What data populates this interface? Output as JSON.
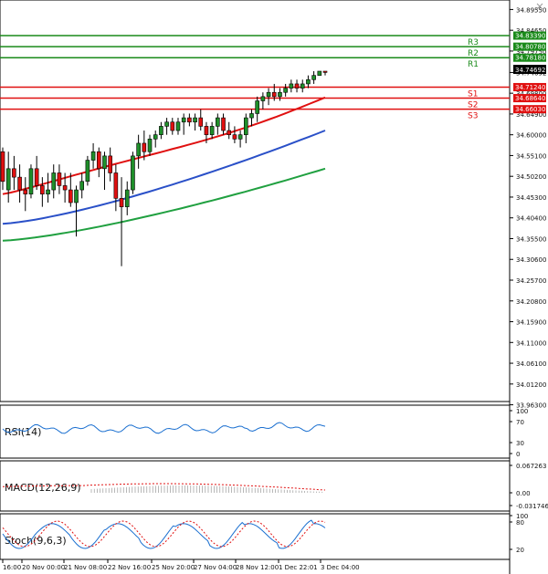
{
  "chart_data": {
    "type": "candlestick",
    "price_axis": {
      "ticks": [
        "34.89550",
        "34.84650",
        "34.79750",
        "34.74692",
        "34.69800",
        "34.64900",
        "34.60000",
        "34.55100",
        "34.50200",
        "34.45300",
        "34.40400",
        "34.35500",
        "34.30600",
        "34.25700",
        "34.20800",
        "34.15900",
        "34.11000",
        "34.06100",
        "34.01200",
        "33.96300"
      ],
      "ylim": [
        33.975,
        34.905
      ]
    },
    "levels": [
      {
        "name": "R3",
        "value": "34.83390",
        "num": 34.8339,
        "color": "#1a8a1a"
      },
      {
        "name": "R2",
        "value": "34.80780",
        "num": 34.8078,
        "color": "#1a8a1a"
      },
      {
        "name": "R1",
        "value": "34.78180",
        "num": 34.7818,
        "color": "#1a8a1a"
      },
      {
        "name": "S1",
        "value": "34.71240",
        "num": 34.7124,
        "color": "#e01010"
      },
      {
        "name": "S2",
        "value": "34.68640",
        "num": 34.6864,
        "color": "#e01010"
      },
      {
        "name": "S3",
        "value": "34.66030",
        "num": 34.6603,
        "color": "#e01010"
      }
    ],
    "current_price": {
      "value": "34.74692",
      "num": 34.74692
    },
    "time_labels": [
      "16:00",
      "20 Nov 00:00",
      "21 Nov 08:00",
      "22 Nov 16:00",
      "25 Nov 20:00",
      "27 Nov 04:00",
      "28 Nov 12:00",
      "1 Dec 22:01",
      "3 Dec 04:00"
    ],
    "candles": [
      {
        "o": 34.56,
        "h": 34.57,
        "l": 34.47,
        "c": 34.49
      },
      {
        "o": 34.47,
        "h": 34.56,
        "l": 34.44,
        "c": 34.52
      },
      {
        "o": 34.52,
        "h": 34.55,
        "l": 34.47,
        "c": 34.5
      },
      {
        "o": 34.5,
        "h": 34.53,
        "l": 34.44,
        "c": 34.47
      },
      {
        "o": 34.47,
        "h": 34.5,
        "l": 34.42,
        "c": 34.46
      },
      {
        "o": 34.46,
        "h": 34.53,
        "l": 34.45,
        "c": 34.52
      },
      {
        "o": 34.52,
        "h": 34.55,
        "l": 34.47,
        "c": 34.48
      },
      {
        "o": 34.48,
        "h": 34.5,
        "l": 34.43,
        "c": 34.46
      },
      {
        "o": 34.46,
        "h": 34.51,
        "l": 34.44,
        "c": 34.47
      },
      {
        "o": 34.47,
        "h": 34.53,
        "l": 34.45,
        "c": 34.51
      },
      {
        "o": 34.51,
        "h": 34.53,
        "l": 34.46,
        "c": 34.48
      },
      {
        "o": 34.48,
        "h": 34.51,
        "l": 34.44,
        "c": 34.47
      },
      {
        "o": 34.47,
        "h": 34.51,
        "l": 34.43,
        "c": 34.44
      },
      {
        "o": 34.44,
        "h": 34.48,
        "l": 34.36,
        "c": 34.47
      },
      {
        "o": 34.47,
        "h": 34.51,
        "l": 34.45,
        "c": 34.49
      },
      {
        "o": 34.49,
        "h": 34.55,
        "l": 34.48,
        "c": 34.54
      },
      {
        "o": 34.54,
        "h": 34.58,
        "l": 34.52,
        "c": 34.56
      },
      {
        "o": 34.56,
        "h": 34.57,
        "l": 34.5,
        "c": 34.52
      },
      {
        "o": 34.52,
        "h": 34.56,
        "l": 34.47,
        "c": 34.55
      },
      {
        "o": 34.55,
        "h": 34.57,
        "l": 34.49,
        "c": 34.51
      },
      {
        "o": 34.51,
        "h": 34.53,
        "l": 34.42,
        "c": 34.45
      },
      {
        "o": 34.45,
        "h": 34.5,
        "l": 34.29,
        "c": 34.43
      },
      {
        "o": 34.43,
        "h": 34.49,
        "l": 34.41,
        "c": 34.47
      },
      {
        "o": 34.47,
        "h": 34.56,
        "l": 34.46,
        "c": 34.55
      },
      {
        "o": 34.55,
        "h": 34.6,
        "l": 34.52,
        "c": 34.58
      },
      {
        "o": 34.58,
        "h": 34.61,
        "l": 34.54,
        "c": 34.56
      },
      {
        "o": 34.56,
        "h": 34.6,
        "l": 34.55,
        "c": 34.59
      },
      {
        "o": 34.59,
        "h": 34.61,
        "l": 34.57,
        "c": 34.6
      },
      {
        "o": 34.6,
        "h": 34.63,
        "l": 34.59,
        "c": 34.62
      },
      {
        "o": 34.62,
        "h": 34.64,
        "l": 34.6,
        "c": 34.63
      },
      {
        "o": 34.63,
        "h": 34.64,
        "l": 34.6,
        "c": 34.61
      },
      {
        "o": 34.61,
        "h": 34.64,
        "l": 34.6,
        "c": 34.63
      },
      {
        "o": 34.63,
        "h": 34.65,
        "l": 34.6,
        "c": 34.64
      },
      {
        "o": 34.64,
        "h": 34.65,
        "l": 34.62,
        "c": 34.63
      },
      {
        "o": 34.63,
        "h": 34.65,
        "l": 34.61,
        "c": 34.64
      },
      {
        "o": 34.64,
        "h": 34.66,
        "l": 34.61,
        "c": 34.62
      },
      {
        "o": 34.62,
        "h": 34.63,
        "l": 34.58,
        "c": 34.6
      },
      {
        "o": 34.6,
        "h": 34.63,
        "l": 34.59,
        "c": 34.62
      },
      {
        "o": 34.62,
        "h": 34.65,
        "l": 34.6,
        "c": 34.64
      },
      {
        "o": 34.64,
        "h": 34.65,
        "l": 34.6,
        "c": 34.61
      },
      {
        "o": 34.61,
        "h": 34.63,
        "l": 34.59,
        "c": 34.6
      },
      {
        "o": 34.6,
        "h": 34.62,
        "l": 34.58,
        "c": 34.59
      },
      {
        "o": 34.59,
        "h": 34.61,
        "l": 34.57,
        "c": 34.6
      },
      {
        "o": 34.6,
        "h": 34.65,
        "l": 34.58,
        "c": 34.64
      },
      {
        "o": 34.64,
        "h": 34.66,
        "l": 34.62,
        "c": 34.65
      },
      {
        "o": 34.65,
        "h": 34.69,
        "l": 34.63,
        "c": 34.68
      },
      {
        "o": 34.68,
        "h": 34.7,
        "l": 34.66,
        "c": 34.69
      },
      {
        "o": 34.69,
        "h": 34.71,
        "l": 34.67,
        "c": 34.7
      },
      {
        "o": 34.7,
        "h": 34.72,
        "l": 34.68,
        "c": 34.69
      },
      {
        "o": 34.69,
        "h": 34.71,
        "l": 34.68,
        "c": 34.7
      },
      {
        "o": 34.7,
        "h": 34.72,
        "l": 34.69,
        "c": 34.71
      },
      {
        "o": 34.71,
        "h": 34.73,
        "l": 34.7,
        "c": 34.72
      },
      {
        "o": 34.72,
        "h": 34.73,
        "l": 34.7,
        "c": 34.71
      },
      {
        "o": 34.71,
        "h": 34.73,
        "l": 34.7,
        "c": 34.72
      },
      {
        "o": 34.72,
        "h": 34.74,
        "l": 34.71,
        "c": 34.73
      },
      {
        "o": 34.73,
        "h": 34.75,
        "l": 34.72,
        "c": 34.74
      },
      {
        "o": 34.74,
        "h": 34.75,
        "l": 34.74,
        "c": 34.75
      },
      {
        "o": 34.75,
        "h": 34.75,
        "l": 34.74,
        "c": 34.747
      }
    ],
    "moving_averages": [
      {
        "color": "#e01010",
        "start": 34.46,
        "end": 34.69
      },
      {
        "color": "#2a50c8",
        "start": 34.39,
        "end": 34.61
      },
      {
        "color": "#20a040",
        "start": 34.35,
        "end": 34.52
      }
    ]
  },
  "indicators": {
    "rsi": {
      "label": "RSI(14)",
      "ticks": [
        "100",
        "70",
        "30",
        "0"
      ]
    },
    "macd": {
      "label": "MACD(12,26,9)",
      "ticks": [
        "0.067263",
        "0.00",
        "-0.031746"
      ]
    },
    "stoch": {
      "label": "Stoch(9,6,3)",
      "ticks": [
        "100",
        "80",
        "20"
      ]
    }
  },
  "close_icon": "close-icon"
}
